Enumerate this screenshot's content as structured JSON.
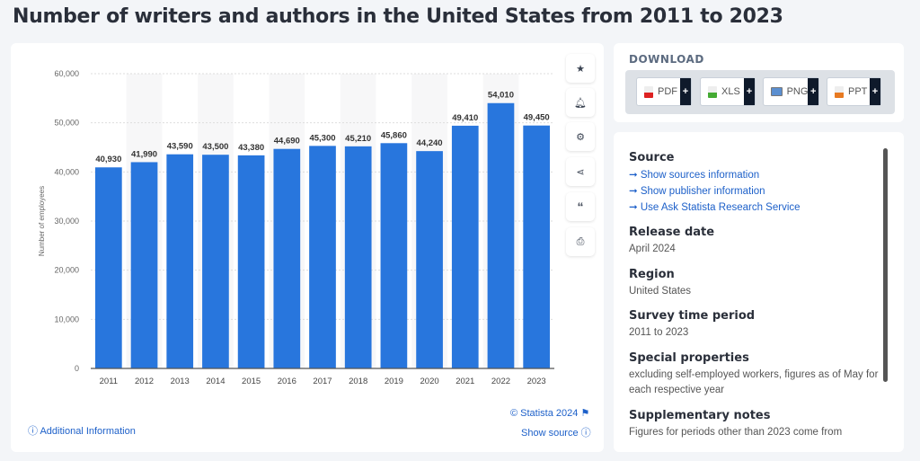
{
  "title": "Number of writers and authors in the United States from 2011 to 2023",
  "chart_data": {
    "type": "bar",
    "title": "Number of writers and authors in the United States from 2011 to 2023",
    "categories": [
      "2011",
      "2012",
      "2013",
      "2014",
      "2015",
      "2016",
      "2017",
      "2018",
      "2019",
      "2020",
      "2021",
      "2022",
      "2023"
    ],
    "values": [
      40930,
      41990,
      43590,
      43500,
      43380,
      44690,
      45300,
      45210,
      45860,
      44240,
      49410,
      54010,
      49450
    ],
    "value_labels": [
      "40,930",
      "41,990",
      "43,590",
      "43,500",
      "43,380",
      "44,690",
      "45,300",
      "45,210",
      "45,860",
      "44,240",
      "49,410",
      "54,010",
      "49,450"
    ],
    "xlabel": "",
    "ylabel": "Number of employees",
    "ylim": [
      0,
      60000
    ],
    "yticks": [
      "0",
      "10,000",
      "20,000",
      "30,000",
      "40,000",
      "50,000",
      "60,000"
    ],
    "grid": true,
    "bar_color": "#2876dd"
  },
  "footer": {
    "additional": "Additional Information",
    "copyright": "© Statista 2024",
    "show_source": "Show source"
  },
  "download": {
    "title": "DOWNLOAD",
    "formats": [
      "PDF",
      "XLS",
      "PNG",
      "PPT"
    ]
  },
  "info": {
    "source_h": "Source",
    "source_links": [
      "Show sources information",
      "Show publisher information",
      "Use Ask Statista Research Service"
    ],
    "release_h": "Release date",
    "release": "April 2024",
    "region_h": "Region",
    "region": "United States",
    "period_h": "Survey time period",
    "period": "2011 to 2023",
    "special_h": "Special properties",
    "special": "excluding self-employed workers, figures as of May for each respective year",
    "notes_h": "Supplementary notes",
    "notes": "Figures for periods other than 2023 come from"
  }
}
